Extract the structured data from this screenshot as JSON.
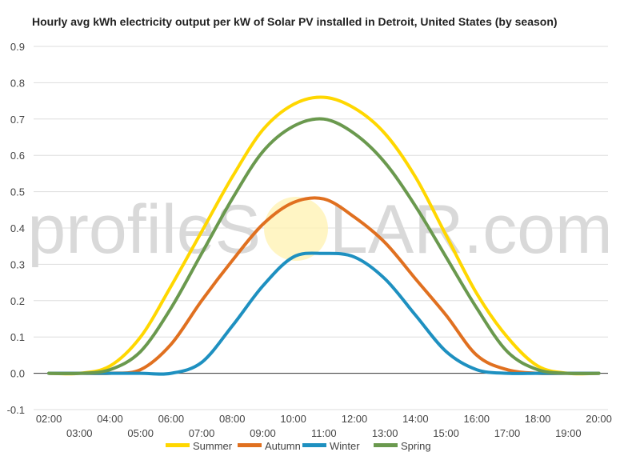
{
  "chart_data": {
    "type": "line",
    "title": "Hourly avg kWh electricity output per kW of Solar PV installed in Detroit, United States (by season)",
    "xlabel": "",
    "ylabel": "",
    "ylim": [
      -0.1,
      0.9
    ],
    "y_ticks": [
      "0.9",
      "0.8",
      "0.7",
      "0.6",
      "0.5",
      "0.4",
      "0.3",
      "0.2",
      "0.1",
      "0.0",
      "-0.1"
    ],
    "y_tick_values": [
      0.9,
      0.8,
      0.7,
      0.6,
      0.5,
      0.4,
      0.3,
      0.2,
      0.1,
      0.0,
      -0.1
    ],
    "x_range": [
      1.5,
      20.3
    ],
    "x_ticks_upper": [
      "02:00",
      "04:00",
      "06:00",
      "08:00",
      "10:00",
      "12:00",
      "14:00",
      "16:00",
      "18:00",
      "20:00"
    ],
    "x_ticks_upper_values": [
      2,
      4,
      6,
      8,
      10,
      12,
      14,
      16,
      18,
      20
    ],
    "x_ticks_lower": [
      "03:00",
      "05:00",
      "07:00",
      "09:00",
      "11:00",
      "13:00",
      "15:00",
      "17:00",
      "19:00"
    ],
    "x_ticks_lower_values": [
      3,
      5,
      7,
      9,
      11,
      13,
      15,
      17,
      19
    ],
    "grid": true,
    "legend_position": "bottom",
    "x": [
      2,
      3,
      4,
      5,
      6,
      7,
      8,
      9,
      10,
      11,
      12,
      13,
      14,
      15,
      16,
      17,
      18,
      19,
      20
    ],
    "series": [
      {
        "name": "Summer",
        "color": "#ffd700",
        "values": [
          0.0,
          0.0,
          0.02,
          0.1,
          0.24,
          0.39,
          0.54,
          0.67,
          0.74,
          0.76,
          0.73,
          0.66,
          0.54,
          0.38,
          0.22,
          0.1,
          0.02,
          0.0,
          0.0
        ]
      },
      {
        "name": "Autumn",
        "color": "#e07020",
        "values": [
          0.0,
          0.0,
          0.0,
          0.01,
          0.08,
          0.2,
          0.31,
          0.41,
          0.47,
          0.48,
          0.43,
          0.36,
          0.26,
          0.16,
          0.05,
          0.01,
          0.0,
          0.0,
          0.0
        ]
      },
      {
        "name": "Winter",
        "color": "#1e90c0",
        "values": [
          0.0,
          0.0,
          0.0,
          0.0,
          0.0,
          0.03,
          0.13,
          0.24,
          0.32,
          0.33,
          0.32,
          0.26,
          0.16,
          0.06,
          0.01,
          0.0,
          0.0,
          0.0,
          0.0
        ]
      },
      {
        "name": "Spring",
        "color": "#6a994e",
        "values": [
          0.0,
          0.0,
          0.01,
          0.06,
          0.18,
          0.33,
          0.48,
          0.61,
          0.68,
          0.7,
          0.66,
          0.58,
          0.46,
          0.32,
          0.18,
          0.06,
          0.01,
          0.0,
          0.0
        ]
      }
    ],
    "watermark": {
      "text_before": "profileS",
      "text_after": "LAR.com",
      "sun_color": "#fff2b0"
    }
  }
}
